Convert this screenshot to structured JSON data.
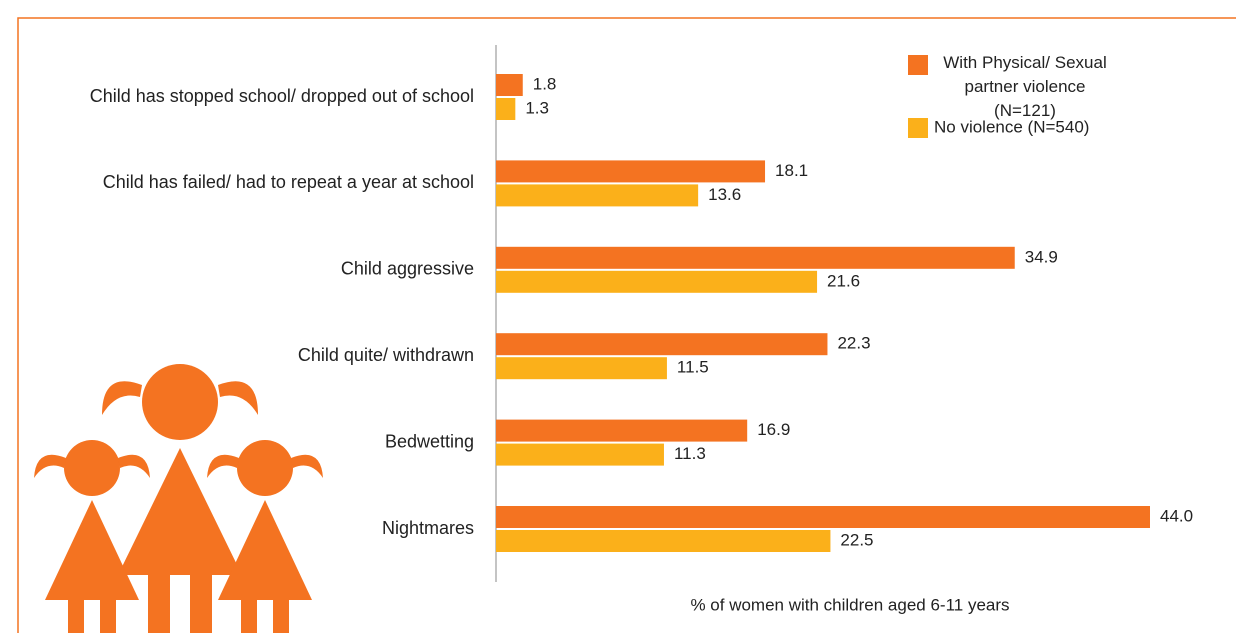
{
  "chart_data": {
    "type": "hbar",
    "categories": [
      "Child has stopped school/ dropped out of school",
      "Child has failed/ had to repeat a year at school",
      "Child aggressive",
      "Child quite/ withdrawn",
      "Bedwetting",
      "Nightmares"
    ],
    "series": [
      {
        "name": "With Physical/ Sexual partner violence (N=121)",
        "color": "#f47321",
        "values": [
          1.8,
          18.1,
          34.9,
          22.3,
          16.9,
          44.0
        ],
        "value_labels": [
          "1.8",
          "18.1",
          "34.9",
          "22.3",
          "16.9",
          "44.0"
        ]
      },
      {
        "name": "No violence (N=540)",
        "color": "#fbb01a",
        "values": [
          1.3,
          13.6,
          21.6,
          11.5,
          11.3,
          22.5
        ],
        "value_labels": [
          "1.3",
          "13.6",
          "21.6",
          "11.5",
          "11.3",
          "22.5"
        ]
      }
    ],
    "xlabel": "% of women with children aged 6-11 years"
  }
}
